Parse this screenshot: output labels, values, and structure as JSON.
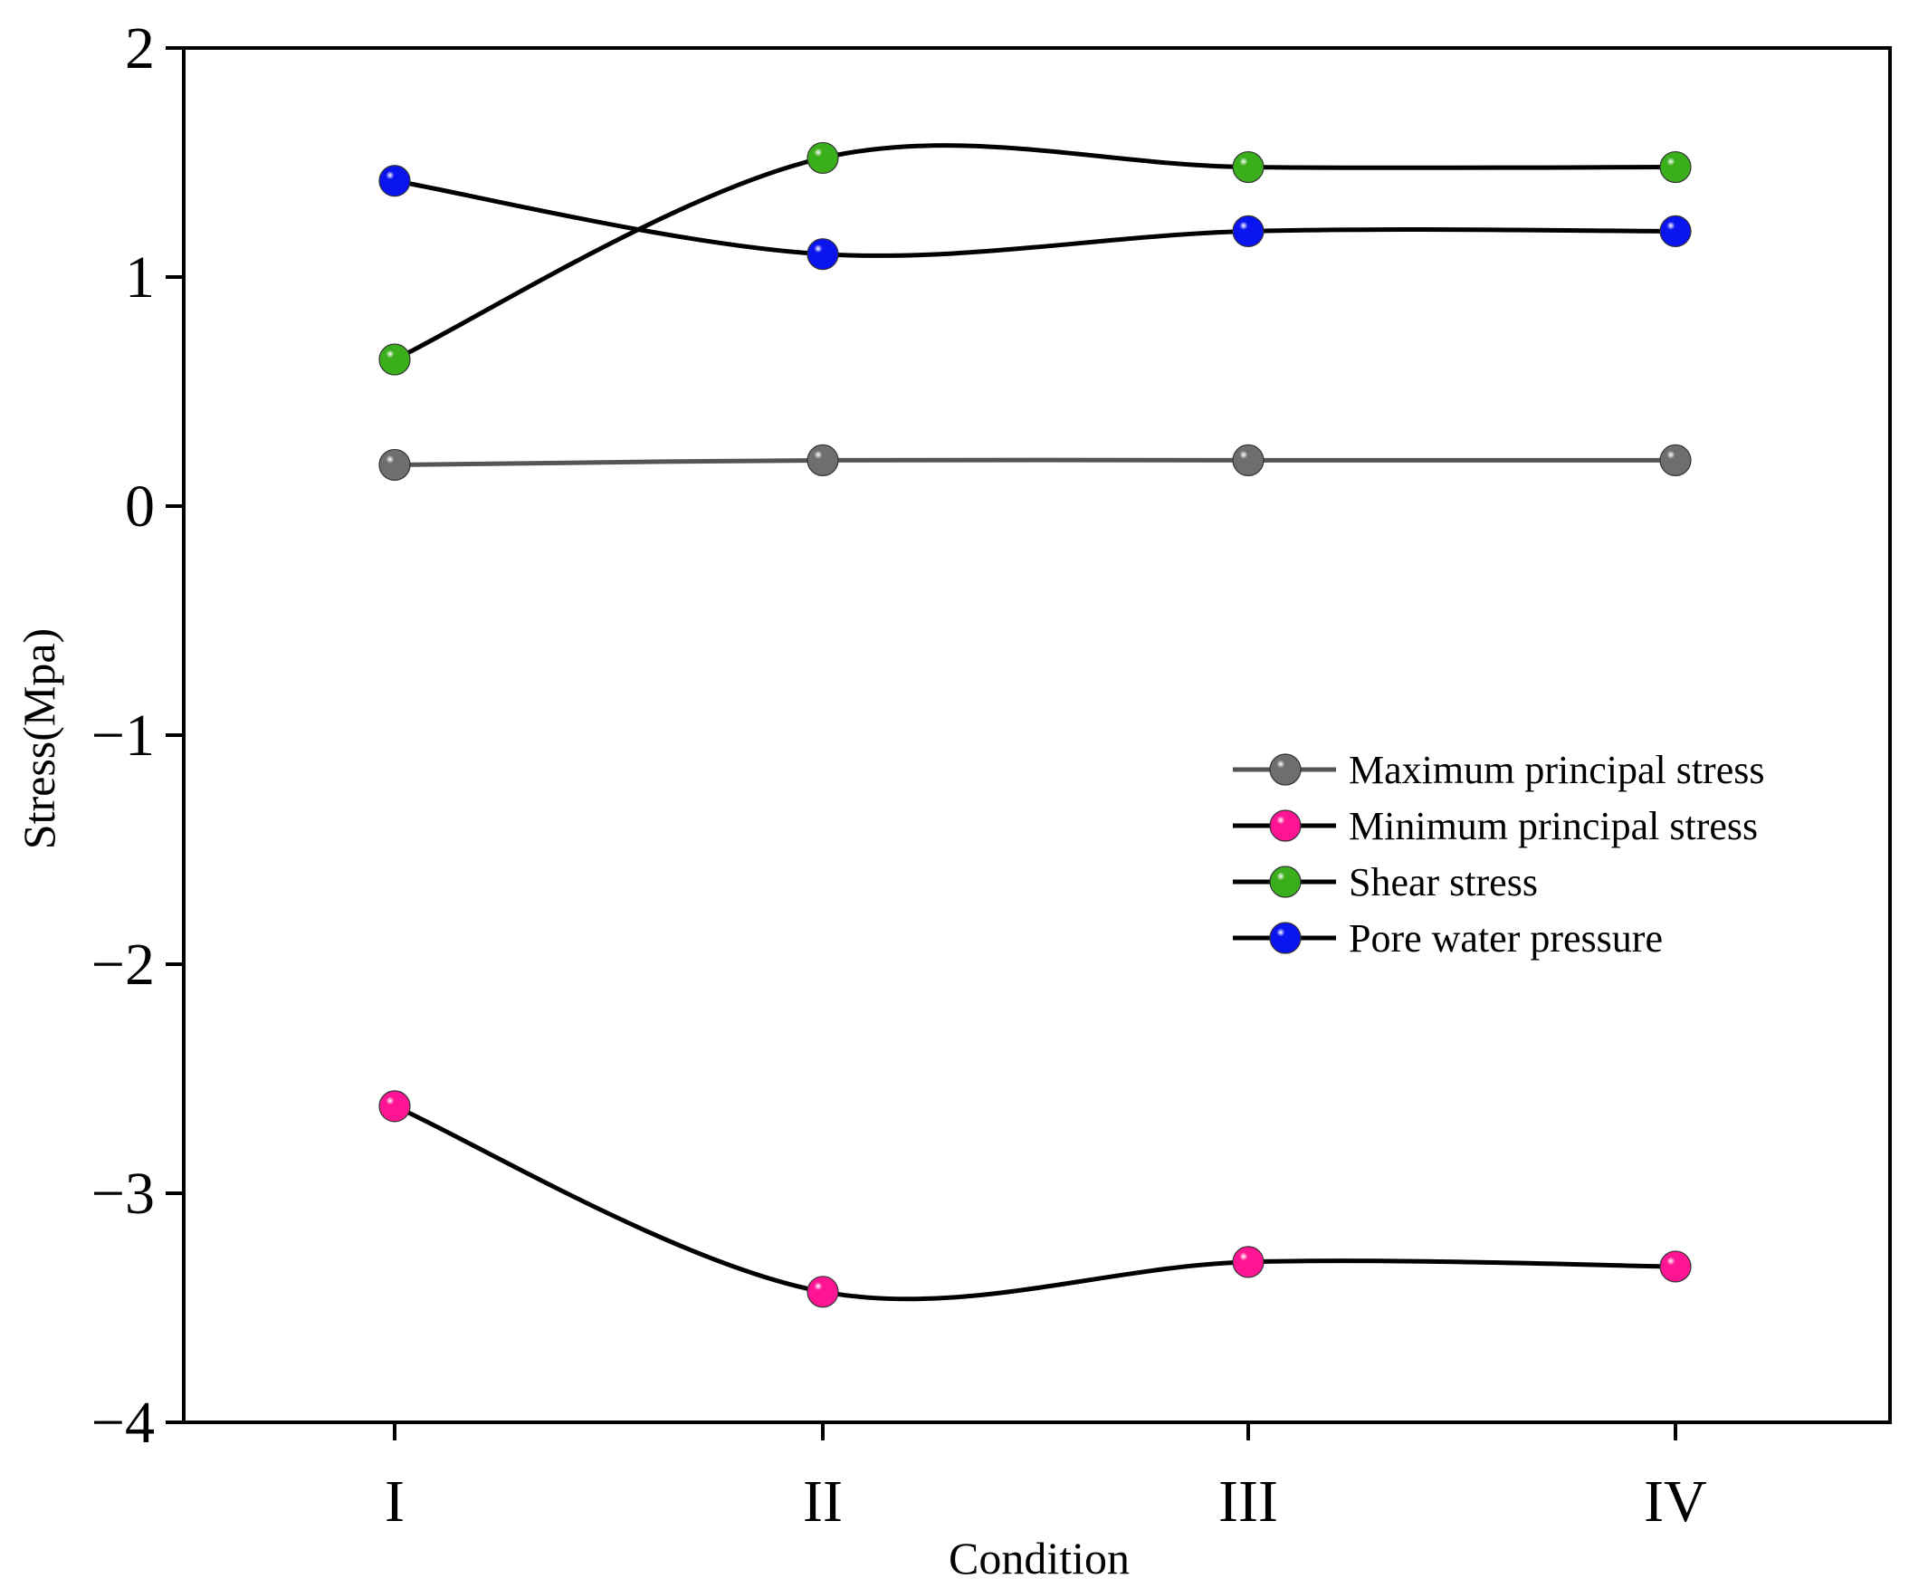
{
  "chart_data": {
    "type": "line",
    "title": "",
    "xlabel": "Condition",
    "ylabel": "Stress(Mpa)",
    "categories": [
      "I",
      "II",
      "III",
      "IV"
    ],
    "ylim": [
      -4,
      2
    ],
    "yticks": [
      2,
      1,
      0,
      -1,
      -2,
      -3,
      -4
    ],
    "ytick_labels": [
      "2",
      "1",
      "0",
      "−1",
      "−2",
      "−3",
      "−4"
    ],
    "legend_position": "center-right",
    "series": [
      {
        "name": "Maximum principal stress",
        "values": [
          0.18,
          0.2,
          0.2,
          0.2
        ],
        "marker_color": "#6e6e6e",
        "line_color": "#555555"
      },
      {
        "name": "Minimum principal stress",
        "values": [
          -2.62,
          -3.43,
          -3.3,
          -3.32
        ],
        "marker_color": "#ff1493",
        "line_color": "#000000"
      },
      {
        "name": "Shear stress",
        "values": [
          0.64,
          1.52,
          1.48,
          1.48
        ],
        "marker_color": "#3bae1c",
        "line_color": "#000000"
      },
      {
        "name": "Pore water pressure",
        "values": [
          1.42,
          1.1,
          1.2,
          1.2
        ],
        "marker_color": "#0a14ee",
        "line_color": "#000000"
      }
    ]
  }
}
